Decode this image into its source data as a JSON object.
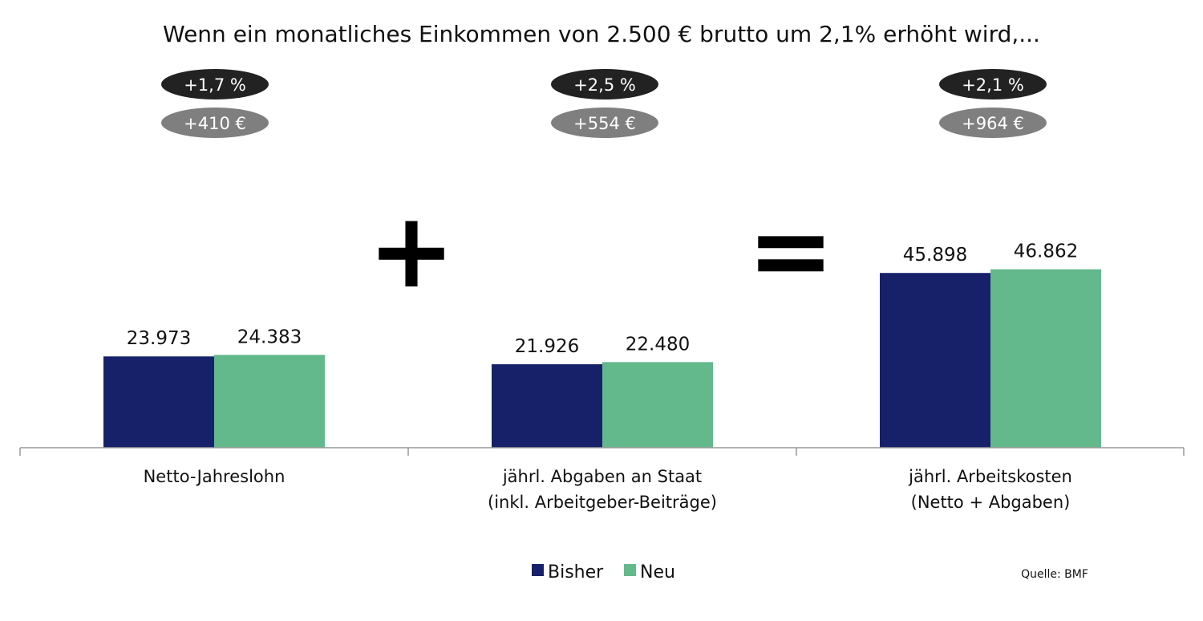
{
  "chart_data": {
    "type": "bar",
    "title": "Wenn ein monatliches Einkommen von 2.500 € brutto um 2,1% erhöht wird,...",
    "categories": [
      [
        "Netto-Jahreslohn"
      ],
      [
        "jährl. Abgaben an Staat",
        "(inkl. Arbeitgeber-Beiträge)"
      ],
      [
        "jährl. Arbeitskosten",
        "(Netto + Abgaben)"
      ]
    ],
    "series": [
      {
        "name": "Bisher",
        "color": "#17216a",
        "values": [
          23973,
          21926,
          45898
        ],
        "labels": [
          "23.973",
          "21.926",
          "45.898"
        ]
      },
      {
        "name": "Neu",
        "color": "#63b98c",
        "values": [
          24383,
          22480,
          46862
        ],
        "labels": [
          "24.383",
          "22.480",
          "46.862"
        ]
      }
    ],
    "changes": [
      {
        "percent": "+1,7 %",
        "amount": "+410 €"
      },
      {
        "percent": "+2,5 %",
        "amount": "+554 €"
      },
      {
        "percent": "+2,1 %",
        "amount": "+964 €"
      }
    ],
    "operators": [
      "+",
      "="
    ],
    "ylim": [
      0,
      50000
    ],
    "grid": false,
    "legend_position": "bottom-center",
    "source": "Quelle: BMF",
    "colors": {
      "pill_percent": "#222222",
      "pill_amount": "#7f7f7f",
      "axis": "#999999"
    }
  }
}
